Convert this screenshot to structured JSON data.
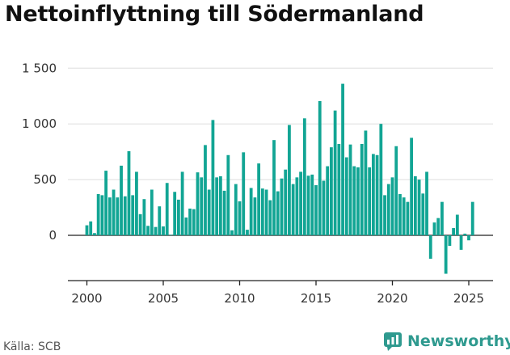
{
  "title": "Nettoinflyttning till Södermanland",
  "source": "Källa: SCB",
  "brand": {
    "name": "Newsworthy",
    "icon": "newsworthy-logo-icon",
    "color": "#2f9a8f"
  },
  "chart_data": {
    "type": "bar",
    "title": "Nettoinflyttning till Södermanland",
    "xlabel": "",
    "ylabel": "",
    "color": "#12a594",
    "grid": true,
    "ylim": [
      -400,
      1600
    ],
    "yticks": [
      0,
      500,
      1000,
      1500
    ],
    "ytick_labels": [
      "0",
      "500",
      "1 000",
      "1 500"
    ],
    "xticks": [
      2000,
      2005,
      2010,
      2015,
      2020,
      2025
    ],
    "xtick_labels": [
      "2000",
      "2005",
      "2010",
      "2015",
      "2020",
      "2025"
    ],
    "x_start": 2000.0,
    "x_step": 0.25,
    "values": [
      90,
      125,
      20,
      370,
      360,
      580,
      340,
      410,
      340,
      625,
      350,
      755,
      360,
      570,
      190,
      325,
      85,
      410,
      75,
      260,
      80,
      470,
      5,
      390,
      320,
      570,
      160,
      240,
      235,
      565,
      520,
      810,
      410,
      1035,
      520,
      530,
      400,
      720,
      45,
      460,
      305,
      745,
      50,
      425,
      340,
      645,
      420,
      410,
      315,
      855,
      395,
      510,
      590,
      990,
      460,
      520,
      570,
      1050,
      535,
      545,
      450,
      1205,
      490,
      620,
      790,
      1120,
      820,
      1360,
      700,
      815,
      620,
      610,
      820,
      940,
      610,
      730,
      720,
      1000,
      360,
      460,
      520,
      800,
      370,
      340,
      300,
      875,
      530,
      500,
      375,
      570,
      -210,
      115,
      155,
      300,
      -345,
      -95,
      65,
      185,
      -130,
      15,
      -45,
      300
    ]
  }
}
